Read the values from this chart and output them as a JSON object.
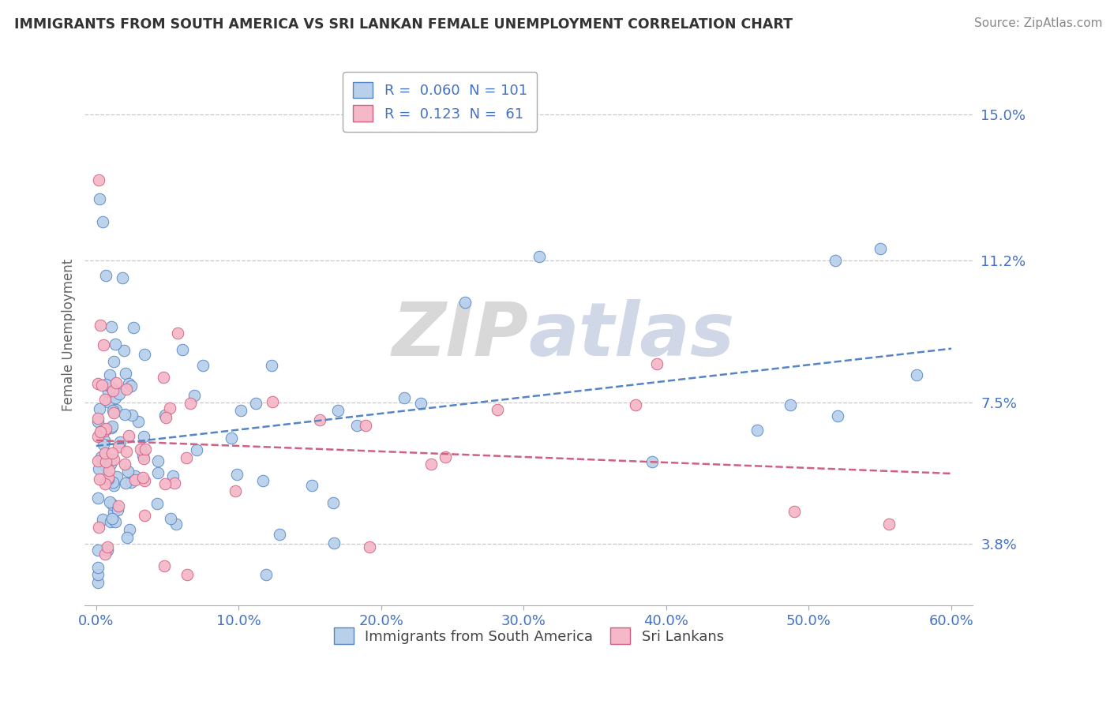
{
  "title": "IMMIGRANTS FROM SOUTH AMERICA VS SRI LANKAN FEMALE UNEMPLOYMENT CORRELATION CHART",
  "source": "Source: ZipAtlas.com",
  "ylabel": "Female Unemployment",
  "watermark_zip": "ZIP",
  "watermark_atlas": "atlas",
  "xlim": [
    0.0,
    0.6
  ],
  "ylim": [
    0.022,
    0.163
  ],
  "yticks": [
    0.038,
    0.075,
    0.112,
    0.15
  ],
  "ytick_labels": [
    "3.8%",
    "7.5%",
    "11.2%",
    "15.0%"
  ],
  "xticks": [
    0.0,
    0.1,
    0.2,
    0.3,
    0.4,
    0.5,
    0.6
  ],
  "xtick_labels": [
    "0.0%",
    "10.0%",
    "20.0%",
    "30.0%",
    "40.0%",
    "50.0%",
    "60.0%"
  ],
  "series1_fill": "#b8d0ea",
  "series2_fill": "#f5b8c8",
  "series1_edge": "#5585c5",
  "series2_edge": "#d06080",
  "series1_label": "Immigrants from South America",
  "series2_label": "Sri Lankans",
  "series1_R": "0.060",
  "series1_N": "101",
  "series2_R": "0.123",
  "series2_N": "61",
  "trend1_color": "#5585c5",
  "trend2_color": "#d06080",
  "background_color": "#ffffff",
  "grid_color": "#c8c8c8",
  "title_color": "#333333",
  "tick_color": "#4472c4",
  "source_color": "#888888",
  "ylabel_color": "#666666"
}
